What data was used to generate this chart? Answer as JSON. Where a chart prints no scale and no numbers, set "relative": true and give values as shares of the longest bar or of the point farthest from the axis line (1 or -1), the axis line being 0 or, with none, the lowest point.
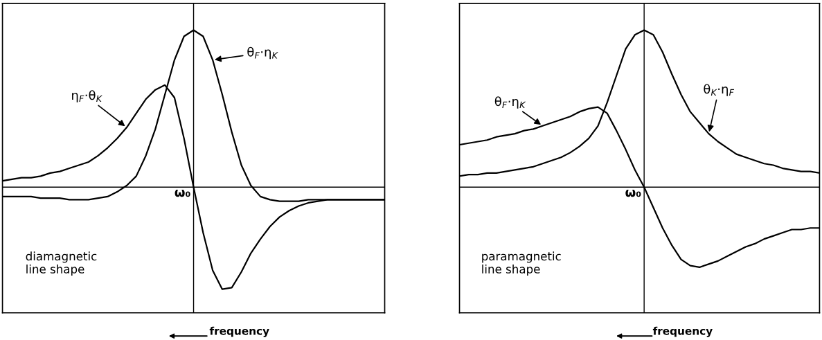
{
  "chart_data": [
    {
      "type": "line",
      "relative": true,
      "xlabel": "frequency",
      "categories": [
        null,
        null,
        null,
        null,
        null,
        null,
        null,
        null,
        null,
        null,
        null,
        null,
        null,
        null,
        null,
        null,
        null,
        null,
        null,
        null,
        null,
        null,
        null,
        null,
        null,
        null,
        null,
        null,
        null,
        null,
        null,
        null,
        null,
        null,
        null,
        null,
        null,
        null,
        null,
        null,
        null
      ],
      "annotations": [
        "diamagnetic\nline shape",
        "ω₀"
      ],
      "series": [
        {
          "name": "θ$_{F}$·η$_{K}$",
          "color": "#000000",
          "values": [
            -0.06,
            -0.06,
            -0.06,
            -0.06,
            -0.07,
            -0.07,
            -0.07,
            -0.08,
            -0.08,
            -0.08,
            -0.07,
            -0.06,
            -0.03,
            0.01,
            0.07,
            0.2,
            0.37,
            0.59,
            0.81,
            0.96,
            1,
            0.96,
            0.81,
            0.59,
            0.35,
            0.14,
            0.01,
            -0.06,
            -0.08,
            -0.09,
            -0.09,
            -0.09,
            -0.08,
            -0.08,
            -0.08,
            -0.08,
            -0.08,
            -0.08,
            -0.08,
            -0.08,
            -0.08
          ]
        },
        {
          "name": "η$_{F}$·θ$_{K}$",
          "color": "#000000",
          "values": [
            0.04,
            0.05,
            0.06,
            0.06,
            0.07,
            0.09,
            0.1,
            0.12,
            0.14,
            0.16,
            0.2,
            0.25,
            0.31,
            0.38,
            0.47,
            0.56,
            0.62,
            0.65,
            0.57,
            0.31,
            0,
            -0.29,
            -0.53,
            -0.65,
            -0.64,
            -0.54,
            -0.42,
            -0.33,
            -0.25,
            -0.19,
            -0.15,
            -0.12,
            -0.1,
            -0.09,
            -0.08,
            -0.08,
            -0.08,
            -0.08,
            -0.08,
            -0.08,
            -0.08
          ]
        }
      ]
    },
    {
      "type": "line",
      "relative": true,
      "xlabel": "frequency",
      "categories": [
        null,
        null,
        null,
        null,
        null,
        null,
        null,
        null,
        null,
        null,
        null,
        null,
        null,
        null,
        null,
        null,
        null,
        null,
        null,
        null,
        null,
        null,
        null,
        null,
        null,
        null,
        null,
        null,
        null,
        null,
        null,
        null,
        null,
        null,
        null,
        null,
        null,
        null,
        null,
        null
      ],
      "annotations": [
        "paramagnetic\nline shape",
        "ω₀"
      ],
      "series": [
        {
          "name": "θ$_{K}$·η$_{F}$",
          "color": "#000000",
          "values": [
            0.07,
            0.08,
            0.08,
            0.09,
            0.09,
            0.1,
            0.11,
            0.12,
            0.13,
            0.15,
            0.17,
            0.19,
            0.22,
            0.26,
            0.31,
            0.39,
            0.54,
            0.71,
            0.88,
            0.97,
            1,
            0.97,
            0.86,
            0.72,
            0.59,
            0.48,
            0.41,
            0.34,
            0.29,
            0.25,
            0.21,
            0.19,
            0.17,
            0.15,
            0.14,
            0.12,
            0.11,
            0.1,
            0.1,
            0.09
          ]
        },
        {
          "name": "θ$_{F}$·η$_{K}$",
          "color": "#000000",
          "values": [
            0.27,
            0.28,
            0.29,
            0.3,
            0.32,
            0.33,
            0.34,
            0.36,
            0.37,
            0.39,
            0.41,
            0.43,
            0.45,
            0.48,
            0.5,
            0.51,
            0.47,
            0.36,
            0.24,
            0.11,
            0,
            -0.13,
            -0.26,
            -0.37,
            -0.46,
            -0.5,
            -0.51,
            -0.49,
            -0.47,
            -0.44,
            -0.41,
            -0.38,
            -0.36,
            -0.33,
            -0.31,
            -0.29,
            -0.27,
            -0.27,
            -0.26,
            -0.26
          ]
        }
      ]
    }
  ]
}
